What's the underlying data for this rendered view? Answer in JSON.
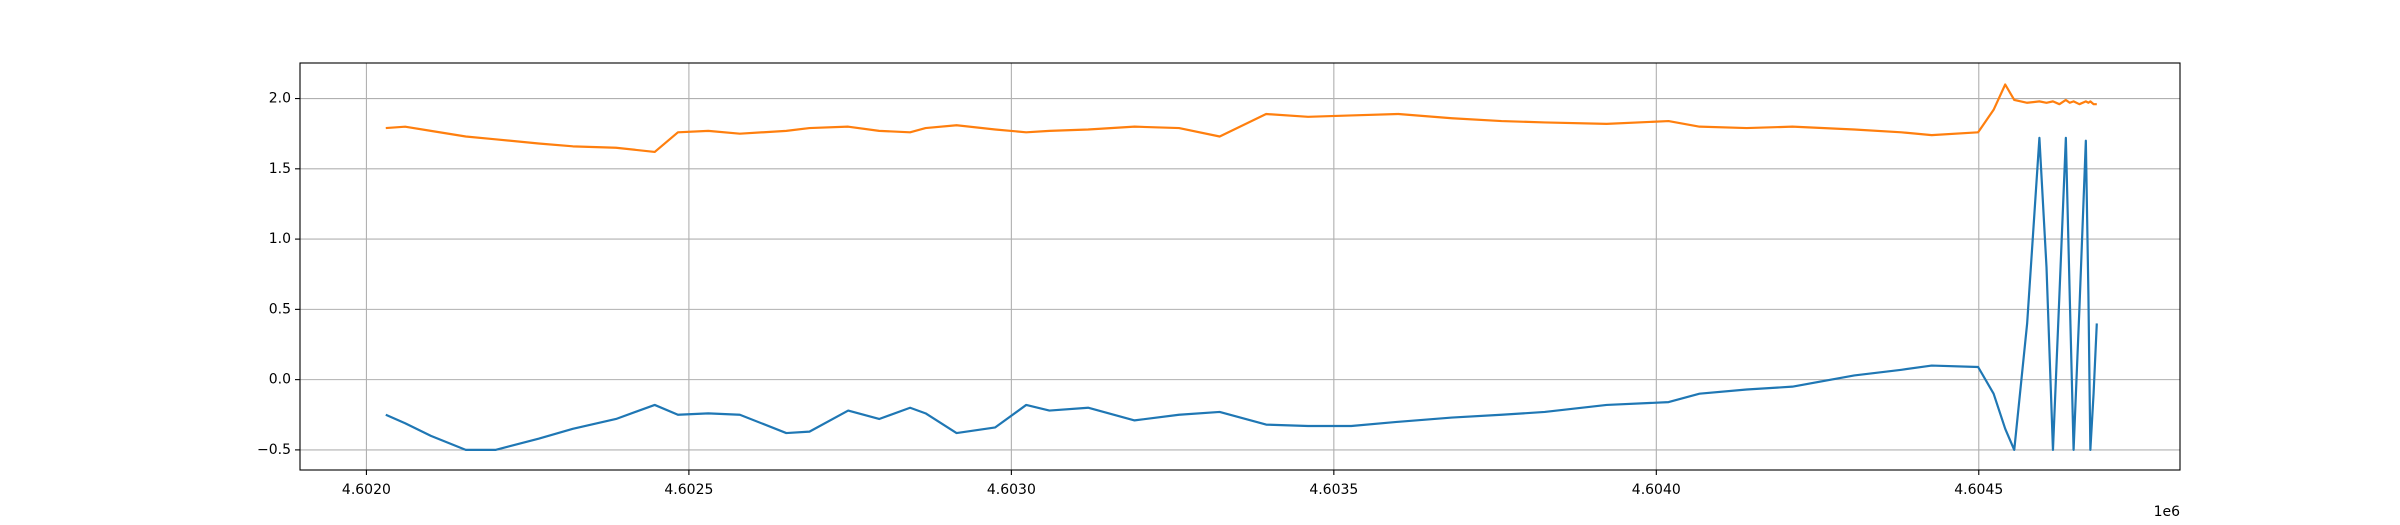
{
  "chart_data": {
    "type": "line",
    "x_offset_label": "1e6",
    "x": [
      4602030,
      4602060,
      4602100,
      4602154,
      4602200,
      4602267,
      4602320,
      4602387,
      4602447,
      4602483,
      4602530,
      4602579,
      4602651,
      4602687,
      4602747,
      4602795,
      4602843,
      4602867,
      4602915,
      4602975,
      4603023,
      4603059,
      4603119,
      4603191,
      4603260,
      4603323,
      4603395,
      4603460,
      4603527,
      4603600,
      4603683,
      4603760,
      4603827,
      4603923,
      4604019,
      4604067,
      4604140,
      4604211,
      4604307,
      4604380,
      4604427,
      4604499,
      4604523,
      4604541,
      4604555,
      4604575,
      4604594,
      4604605,
      4604615,
      4604625,
      4604635,
      4604641,
      4604647,
      4604656,
      4604666,
      4604670,
      4604673,
      4604678,
      4604683
    ],
    "series": [
      {
        "color": "#1f77b4",
        "values": [
          -0.25,
          -0.31,
          -0.4,
          -0.5,
          -0.5,
          -0.42,
          -0.35,
          -0.28,
          -0.18,
          -0.25,
          -0.24,
          -0.25,
          -0.38,
          -0.37,
          -0.22,
          -0.28,
          -0.2,
          -0.24,
          -0.38,
          -0.34,
          -0.18,
          -0.22,
          -0.2,
          -0.29,
          -0.25,
          -0.23,
          -0.32,
          -0.33,
          -0.33,
          -0.3,
          -0.27,
          -0.25,
          -0.23,
          -0.18,
          -0.16,
          -0.1,
          -0.07,
          -0.05,
          0.03,
          0.07,
          0.1,
          0.09,
          -0.1,
          -0.35,
          -0.5,
          0.4,
          1.72,
          0.8,
          -0.5,
          0.6,
          1.72,
          0.6,
          -0.5,
          0.5,
          1.7,
          0.6,
          -0.5,
          -0.1,
          0.4
        ]
      },
      {
        "color": "#ff7f0e",
        "values": [
          1.79,
          1.8,
          1.77,
          1.73,
          1.71,
          1.68,
          1.66,
          1.65,
          1.62,
          1.76,
          1.77,
          1.75,
          1.77,
          1.79,
          1.8,
          1.77,
          1.76,
          1.79,
          1.81,
          1.78,
          1.76,
          1.77,
          1.78,
          1.8,
          1.79,
          1.73,
          1.89,
          1.87,
          1.88,
          1.89,
          1.86,
          1.84,
          1.83,
          1.82,
          1.84,
          1.8,
          1.79,
          1.8,
          1.78,
          1.76,
          1.74,
          1.76,
          1.92,
          2.1,
          1.99,
          1.97,
          1.98,
          1.97,
          1.98,
          1.96,
          1.99,
          1.97,
          1.98,
          1.96,
          1.98,
          1.97,
          1.98,
          1.96,
          1.96
        ]
      }
    ],
    "xlim": [
      4601897,
      4604812
    ],
    "xticks": [
      {
        "value": 4602000,
        "label": "4.6020"
      },
      {
        "value": 4602500,
        "label": "4.6025"
      },
      {
        "value": 4603000,
        "label": "4.6030"
      },
      {
        "value": 4603500,
        "label": "4.6035"
      },
      {
        "value": 4604000,
        "label": "4.6040"
      },
      {
        "value": 4604500,
        "label": "4.6045"
      }
    ],
    "ylim": [
      -0.643,
      2.253
    ],
    "yticks": [
      {
        "value": -0.5,
        "label": "−0.5"
      },
      {
        "value": 0,
        "label": "0.0"
      },
      0.5,
      {
        "value": 1,
        "label": "1.0"
      },
      1.5,
      {
        "value": 2,
        "label": "2.0"
      }
    ],
    "grid": true
  }
}
